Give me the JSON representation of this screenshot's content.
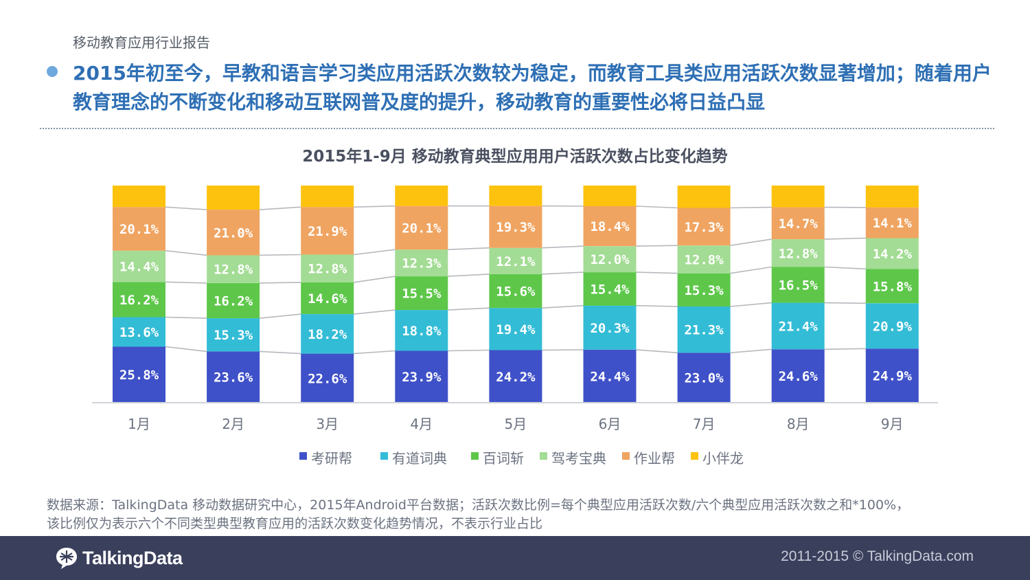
{
  "header": {
    "label": "移动教育应用行业报告"
  },
  "headline": "2015年初至今，早教和语言学习类应用活跃次数较为稳定，而教育工具类应用活跃次数显著增加；随着用户教育理念的不断变化和移动互联网普及度的提升，移动教育的重要性必将日益凸显",
  "chart_data": {
    "type": "bar",
    "stacked": "percent",
    "title": "2015年1-9月  移动教育典型应用用户活跃次数占比变化趋势",
    "categories": [
      "1月",
      "2月",
      "3月",
      "4月",
      "5月",
      "6月",
      "7月",
      "8月",
      "9月"
    ],
    "series": [
      {
        "name": "考研帮",
        "color": "#3f51c8",
        "values": [
          25.8,
          23.6,
          22.6,
          23.9,
          24.2,
          24.4,
          23.0,
          24.6,
          24.9
        ]
      },
      {
        "name": "有道词典",
        "color": "#33bcd6",
        "values": [
          13.6,
          15.3,
          18.2,
          18.8,
          19.4,
          20.3,
          21.3,
          21.4,
          20.9
        ]
      },
      {
        "name": "百词斩",
        "color": "#5ec74a",
        "values": [
          16.2,
          16.2,
          14.6,
          15.5,
          15.6,
          15.4,
          15.3,
          16.5,
          15.8
        ]
      },
      {
        "name": "驾考宝典",
        "color": "#a3dc94",
        "values": [
          14.4,
          12.8,
          12.8,
          12.3,
          12.1,
          12.0,
          12.8,
          12.8,
          14.2
        ]
      },
      {
        "name": "作业帮",
        "color": "#f0a461",
        "values": [
          20.1,
          21.0,
          21.9,
          20.1,
          19.3,
          18.4,
          17.3,
          14.7,
          14.1
        ]
      },
      {
        "name": "小伴龙",
        "color": "#fcc20e",
        "values": [
          9.9,
          11.1,
          9.9,
          9.4,
          9.4,
          9.5,
          10.3,
          10.0,
          10.1
        ]
      }
    ],
    "xlabel": "",
    "ylabel": "",
    "ylim": [
      0,
      100
    ],
    "legend_position": "bottom"
  },
  "footnote": {
    "line1": "数据来源：TalkingData 移动数据研究中心，2015年Android平台数据；活跃次数比例=每个典型应用活跃次数/六个典型应用活跃次数之和*100%，",
    "line2": "该比例仅为表示六个不同类型典型教育应用的活跃次数变化趋势情况，不表示行业占比"
  },
  "footer": {
    "logo_text": "TalkingData",
    "copyright": "2011-2015 © TalkingData.com"
  }
}
